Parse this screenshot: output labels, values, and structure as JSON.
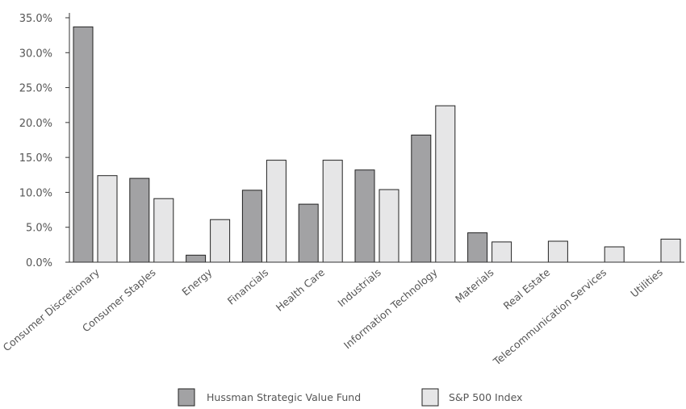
{
  "chart_data": {
    "type": "bar",
    "categories": [
      "Consumer Discretionary",
      "Consumer Staples",
      "Energy",
      "Financials",
      "Health Care",
      "Industrials",
      "Information Technology",
      "Materials",
      "Real Estate",
      "Telecommunication Services",
      "Utilities"
    ],
    "series": [
      {
        "name": "Hussman Strategic Value Fund",
        "color": "#a2a2a4",
        "values": [
          33.7,
          12.0,
          1.0,
          10.3,
          8.3,
          13.2,
          18.2,
          4.2,
          0.0,
          0.0,
          0.0
        ]
      },
      {
        "name": "S&P 500 Index",
        "color": "#e6e6e7",
        "values": [
          12.4,
          9.1,
          6.1,
          14.6,
          14.6,
          10.4,
          22.4,
          2.9,
          3.0,
          2.2,
          3.3
        ]
      }
    ],
    "yticks": [
      "0.0%",
      "5.0%",
      "10.0%",
      "15.0%",
      "20.0%",
      "25.0%",
      "30.0%",
      "35.0%"
    ],
    "ylim": [
      0,
      35
    ],
    "grid": false,
    "legend_position": "bottom-center",
    "title": "",
    "xlabel": "",
    "ylabel": ""
  }
}
